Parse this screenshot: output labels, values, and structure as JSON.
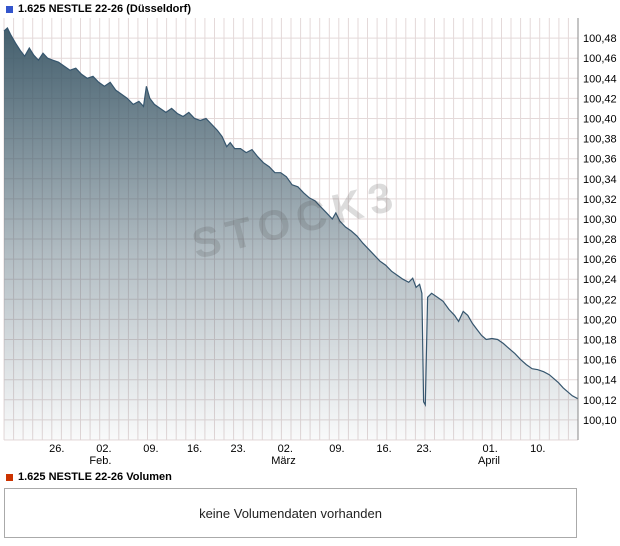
{
  "header": {
    "title": "1.625 NESTLE 22-26 (Düsseldorf)"
  },
  "watermark": "STOCK3",
  "volume_section": {
    "title": "1.625 NESTLE 22-26 Volumen",
    "empty_message": "keine Volumendaten vorhanden"
  },
  "colors": {
    "price_marker": "#3355cc",
    "volume_marker": "#cc3300",
    "line": "#36566e",
    "fill": "#3d5968",
    "grid": "#e4d9d9",
    "axis": "#888888",
    "text": "#000000",
    "panel_border": "#aaaaaa"
  },
  "chart_data": {
    "type": "area",
    "title": "1.625 NESTLE 22-26 (Düsseldorf)",
    "y_axis_position": "right",
    "grid": {
      "vertical_divisions": 60
    },
    "ylim": [
      100.08,
      100.5
    ],
    "y_tick_values": [
      100.48,
      100.46,
      100.44,
      100.42,
      100.4,
      100.38,
      100.36,
      100.34,
      100.32,
      100.3,
      100.28,
      100.26,
      100.24,
      100.22,
      100.2,
      100.18,
      100.16,
      100.14,
      100.12,
      100.1
    ],
    "y_tick_labels": [
      "100,48",
      "100,46",
      "100,44",
      "100,42",
      "100,40",
      "100,38",
      "100,36",
      "100,34",
      "100,32",
      "100,30",
      "100,28",
      "100,26",
      "100,24",
      "100,22",
      "100,20",
      "100,18",
      "100,16",
      "100,14",
      "100,12",
      "100,10"
    ],
    "x_ticks": [
      {
        "f": 0.092,
        "label": "26."
      },
      {
        "f": 0.174,
        "label": "02."
      },
      {
        "f": 0.256,
        "label": "09."
      },
      {
        "f": 0.332,
        "label": "16."
      },
      {
        "f": 0.408,
        "label": "23."
      },
      {
        "f": 0.49,
        "label": "02."
      },
      {
        "f": 0.58,
        "label": "09."
      },
      {
        "f": 0.662,
        "label": "16."
      },
      {
        "f": 0.732,
        "label": "23."
      },
      {
        "f": 0.847,
        "label": "01."
      },
      {
        "f": 0.93,
        "label": "10."
      }
    ],
    "month_labels": [
      {
        "f": 0.168,
        "label": "Feb."
      },
      {
        "f": 0.487,
        "label": "März"
      },
      {
        "f": 0.845,
        "label": "April"
      }
    ],
    "points": [
      [
        0.0,
        100.487
      ],
      [
        0.006,
        100.49
      ],
      [
        0.012,
        100.483
      ],
      [
        0.02,
        100.475
      ],
      [
        0.028,
        100.468
      ],
      [
        0.036,
        100.462
      ],
      [
        0.044,
        100.47
      ],
      [
        0.052,
        100.463
      ],
      [
        0.06,
        100.458
      ],
      [
        0.068,
        100.465
      ],
      [
        0.076,
        100.46
      ],
      [
        0.085,
        100.458
      ],
      [
        0.095,
        100.456
      ],
      [
        0.105,
        100.452
      ],
      [
        0.115,
        100.448
      ],
      [
        0.125,
        100.45
      ],
      [
        0.135,
        100.444
      ],
      [
        0.145,
        100.44
      ],
      [
        0.155,
        100.442
      ],
      [
        0.165,
        100.436
      ],
      [
        0.175,
        100.432
      ],
      [
        0.185,
        100.436
      ],
      [
        0.195,
        100.428
      ],
      [
        0.205,
        100.424
      ],
      [
        0.215,
        100.42
      ],
      [
        0.225,
        100.414
      ],
      [
        0.235,
        100.417
      ],
      [
        0.243,
        100.412
      ],
      [
        0.248,
        100.432
      ],
      [
        0.254,
        100.42
      ],
      [
        0.262,
        100.414
      ],
      [
        0.272,
        100.41
      ],
      [
        0.282,
        100.406
      ],
      [
        0.292,
        100.41
      ],
      [
        0.302,
        100.405
      ],
      [
        0.312,
        100.402
      ],
      [
        0.322,
        100.406
      ],
      [
        0.332,
        100.4
      ],
      [
        0.342,
        100.398
      ],
      [
        0.352,
        100.4
      ],
      [
        0.362,
        100.394
      ],
      [
        0.372,
        100.388
      ],
      [
        0.38,
        100.382
      ],
      [
        0.388,
        100.372
      ],
      [
        0.394,
        100.376
      ],
      [
        0.402,
        100.37
      ],
      [
        0.412,
        100.37
      ],
      [
        0.422,
        100.366
      ],
      [
        0.432,
        100.369
      ],
      [
        0.442,
        100.362
      ],
      [
        0.452,
        100.356
      ],
      [
        0.462,
        100.352
      ],
      [
        0.472,
        100.346
      ],
      [
        0.482,
        100.346
      ],
      [
        0.492,
        100.342
      ],
      [
        0.502,
        100.334
      ],
      [
        0.512,
        100.332
      ],
      [
        0.522,
        100.326
      ],
      [
        0.532,
        100.321
      ],
      [
        0.542,
        100.318
      ],
      [
        0.552,
        100.312
      ],
      [
        0.562,
        100.306
      ],
      [
        0.572,
        100.3
      ],
      [
        0.578,
        100.306
      ],
      [
        0.585,
        100.298
      ],
      [
        0.595,
        100.292
      ],
      [
        0.605,
        100.288
      ],
      [
        0.615,
        100.283
      ],
      [
        0.625,
        100.276
      ],
      [
        0.635,
        100.27
      ],
      [
        0.645,
        100.264
      ],
      [
        0.655,
        100.258
      ],
      [
        0.665,
        100.254
      ],
      [
        0.675,
        100.248
      ],
      [
        0.685,
        100.244
      ],
      [
        0.695,
        100.24
      ],
      [
        0.705,
        100.237
      ],
      [
        0.712,
        100.241
      ],
      [
        0.718,
        100.232
      ],
      [
        0.724,
        100.235
      ],
      [
        0.728,
        100.226
      ],
      [
        0.731,
        100.118
      ],
      [
        0.734,
        100.115
      ],
      [
        0.738,
        100.222
      ],
      [
        0.745,
        100.226
      ],
      [
        0.755,
        100.222
      ],
      [
        0.765,
        100.218
      ],
      [
        0.775,
        100.21
      ],
      [
        0.785,
        100.204
      ],
      [
        0.792,
        100.198
      ],
      [
        0.8,
        100.208
      ],
      [
        0.808,
        100.204
      ],
      [
        0.816,
        100.196
      ],
      [
        0.824,
        100.19
      ],
      [
        0.832,
        100.184
      ],
      [
        0.84,
        100.18
      ],
      [
        0.85,
        100.181
      ],
      [
        0.86,
        100.18
      ],
      [
        0.87,
        100.176
      ],
      [
        0.88,
        100.171
      ],
      [
        0.89,
        100.166
      ],
      [
        0.9,
        100.16
      ],
      [
        0.91,
        100.155
      ],
      [
        0.92,
        100.151
      ],
      [
        0.93,
        100.15
      ],
      [
        0.94,
        100.148
      ],
      [
        0.95,
        100.145
      ],
      [
        0.958,
        100.141
      ],
      [
        0.966,
        100.137
      ],
      [
        0.974,
        100.132
      ],
      [
        0.982,
        100.128
      ],
      [
        0.99,
        100.124
      ],
      [
        1.0,
        100.121
      ]
    ]
  }
}
